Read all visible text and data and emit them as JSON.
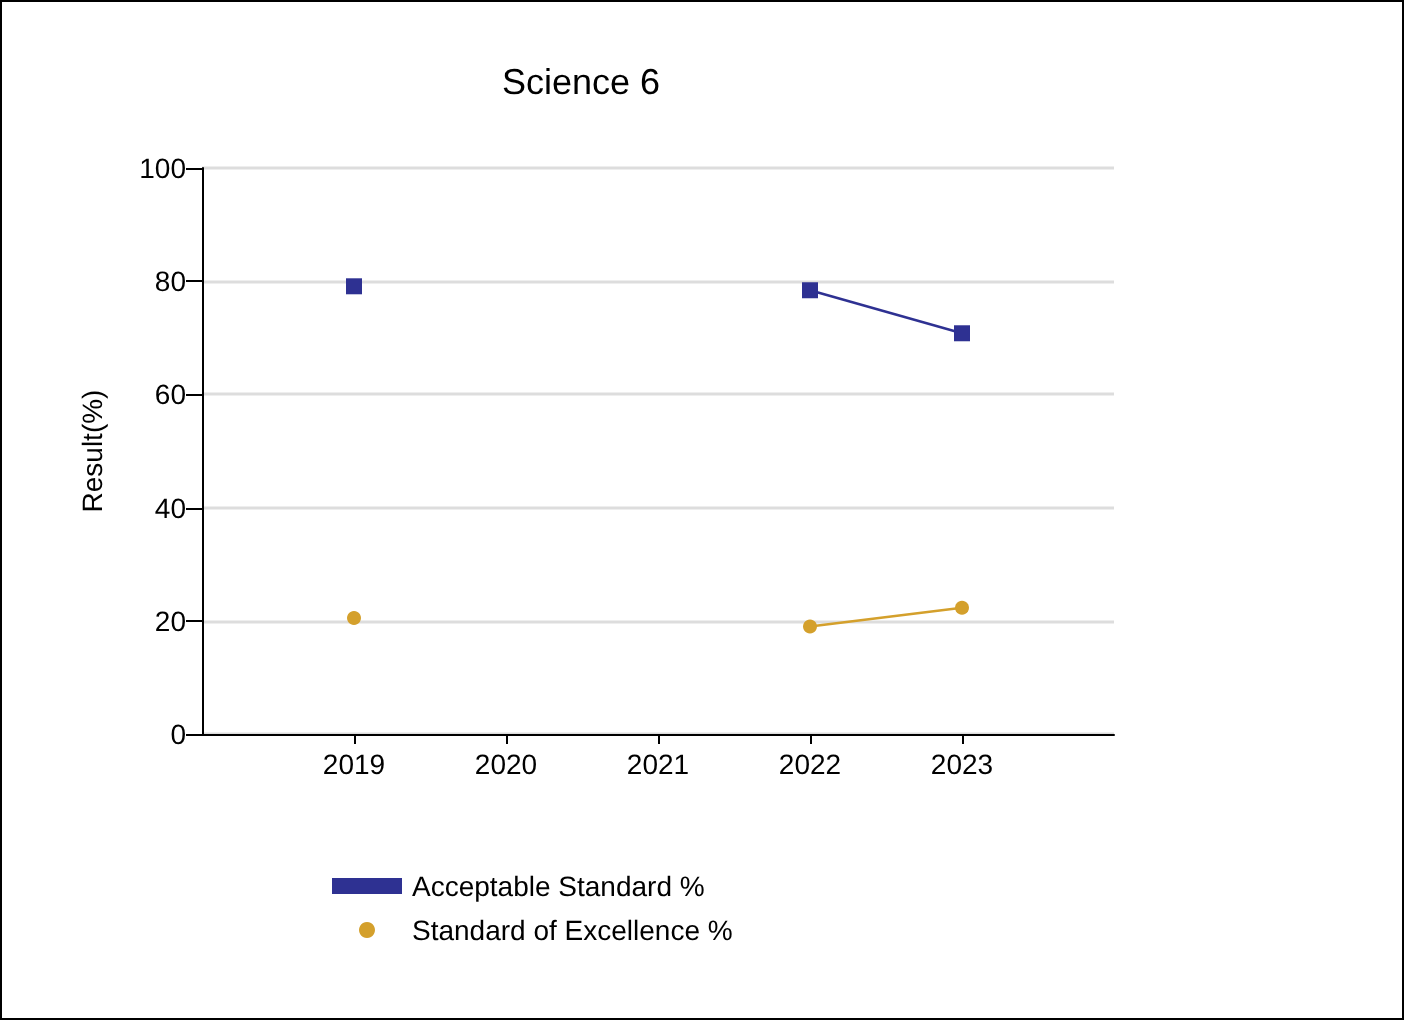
{
  "chart_data": {
    "type": "line",
    "title": "Science 6",
    "ylabel": "Result(%)",
    "categories": [
      null,
      "2019",
      "2020",
      "2021",
      "2022",
      "2023",
      null
    ],
    "series": [
      {
        "name": "Acceptable Standard %",
        "color": "#2e3192",
        "marker": "square",
        "values": [
          null,
          79.1,
          null,
          null,
          78.4,
          70.8,
          null
        ]
      },
      {
        "name": "Standard of Excellence %",
        "color": "#d4a02c",
        "marker": "circle",
        "values": [
          null,
          20.5,
          null,
          null,
          19,
          22.3,
          null
        ]
      }
    ],
    "ylim": [
      0,
      100
    ],
    "yticks": [
      0,
      20,
      40,
      60,
      80,
      100
    ],
    "grid": "y",
    "legend": "bottom left"
  }
}
